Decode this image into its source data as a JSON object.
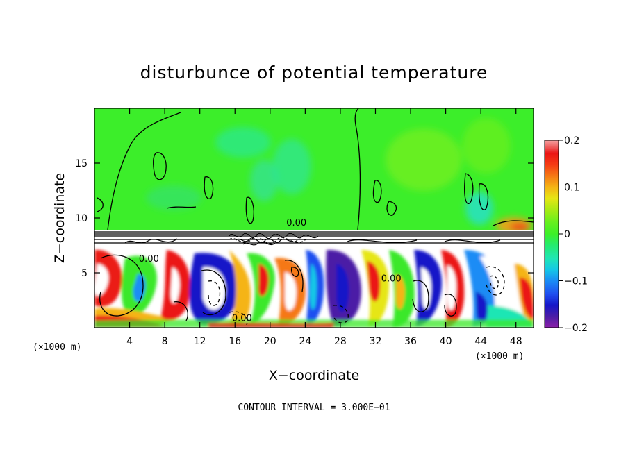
{
  "chart_data": {
    "type": "heatmap",
    "title": "disturbunce of potential temperature",
    "xlabel": "X−coordinate",
    "ylabel": "Z−coordinate",
    "x_unit": "(×1000 m)",
    "x_unit_right": "(×1000 m)",
    "xlim": [
      0,
      50
    ],
    "ylim": [
      0,
      20
    ],
    "x_ticks": [
      4,
      8,
      12,
      16,
      20,
      24,
      28,
      32,
      36,
      40,
      44,
      48
    ],
    "y_ticks": [
      5,
      10,
      15
    ],
    "footer": "CONTOUR INTERVAL = 3.000E−01",
    "contour_labels": [
      {
        "text": "0.00",
        "x": 23.0,
        "y": 9.3
      },
      {
        "text": "0.00",
        "x": 6.2,
        "y": 6.0
      },
      {
        "text": "0.00",
        "x": 16.8,
        "y": 0.6
      },
      {
        "text": "0.00",
        "x": 33.8,
        "y": 4.2
      }
    ],
    "colorbar": {
      "range": [
        -0.2,
        0.2
      ],
      "tick_labels": [
        "0.2",
        "0.1",
        "0",
        "−0.1",
        "−0.2"
      ],
      "tick_values": [
        0.2,
        0.1,
        0,
        -0.1,
        -0.2
      ],
      "colors": [
        "#8b1fa8",
        "#4b1da6",
        "#1616c8",
        "#1f4ff0",
        "#1a8cf5",
        "#14c8e6",
        "#1fe6b4",
        "#24eb6e",
        "#3cf028",
        "#64f01e",
        "#a0eb14",
        "#e6e614",
        "#f5b414",
        "#f57814",
        "#f53c14",
        "#eb1414",
        "#f06a6a",
        "#f5a0a0"
      ]
    },
    "regions": {
      "upper": "near 0 (green) with weak anomalies",
      "lower": "strong mixed anomalies below z ~ 7.5 km"
    }
  }
}
